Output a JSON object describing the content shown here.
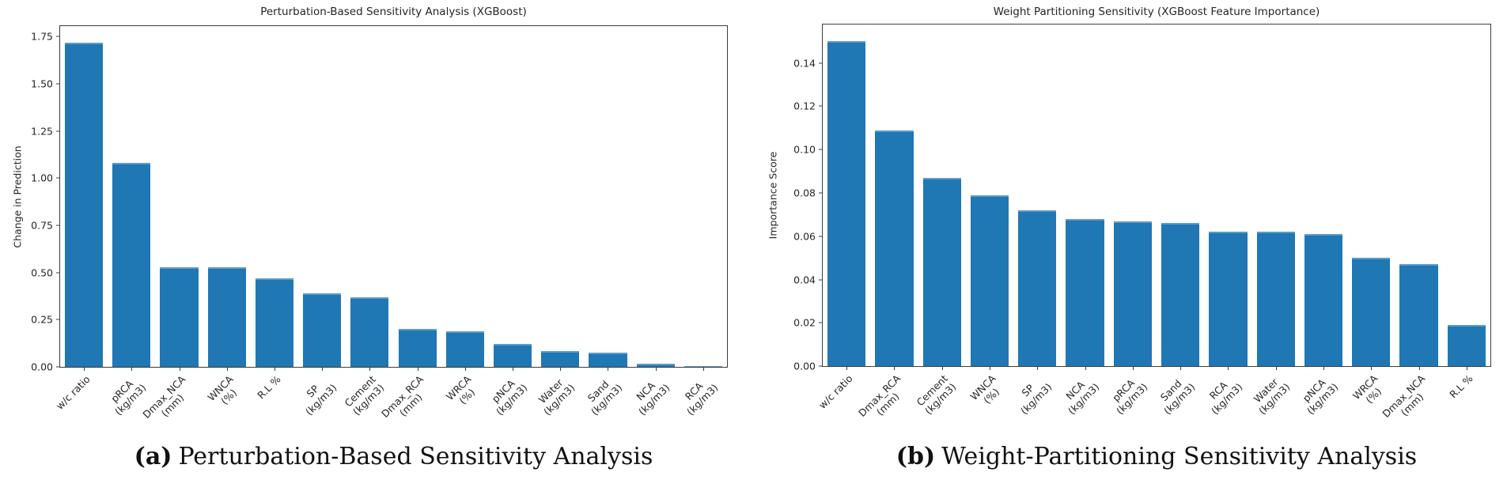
{
  "figure": {
    "background": "#ffffff",
    "bar_color": "#1f77b4",
    "axis_color": "#3c3c3c",
    "text_color": "#262626"
  },
  "chart_data": [
    {
      "type": "bar",
      "title": "Perturbation-Based Sensitivity Analysis (XGBoost)",
      "ylabel": "Change in Prediction",
      "xlabel": "",
      "ylim": [
        0,
        1.806
      ],
      "grid": false,
      "legend": null,
      "yticks": [
        0.0,
        0.25,
        0.5,
        0.75,
        1.0,
        1.25,
        1.5,
        1.75
      ],
      "ytick_labels": [
        "0.00",
        "0.25",
        "0.50",
        "0.75",
        "1.00",
        "1.25",
        "1.50",
        "1.75"
      ],
      "categories": [
        "w/c ratio",
        "pRCA\n(kg/m3)",
        "Dmax_NCA\n(mm)",
        "WNCA\n(%)",
        "R.L %",
        "SP\n(kg/m3)",
        "Cement\n(kg/m3)",
        "Dmax_RCA\n(mm)",
        "WRCA\n(%)",
        "pNCA\n(kg/m3)",
        "Water\n(kg/m3)",
        "Sand\n(kg/m3)",
        "NCA\n(kg/m3)",
        "RCA\n(kg/m3)"
      ],
      "values": [
        1.72,
        1.08,
        0.53,
        0.53,
        0.47,
        0.39,
        0.37,
        0.2,
        0.19,
        0.12,
        0.085,
        0.075,
        0.015,
        0.003
      ],
      "caption_tag": "(a)",
      "caption_text": "Perturbation-Based Sensitivity Analysis"
    },
    {
      "type": "bar",
      "title": "Weight Partitioning Sensitivity (XGBoost Feature Importance)",
      "ylabel": "Importance Score",
      "xlabel": "",
      "ylim": [
        0,
        0.1578
      ],
      "grid": false,
      "legend": null,
      "yticks": [
        0.0,
        0.02,
        0.04,
        0.06,
        0.08,
        0.1,
        0.12,
        0.14
      ],
      "ytick_labels": [
        "0.00",
        "0.02",
        "0.04",
        "0.06",
        "0.08",
        "0.10",
        "0.12",
        "0.14"
      ],
      "categories": [
        "w/c ratio",
        "Dmax_RCA\n(mm)",
        "Cement\n(kg/m3)",
        "WNCA\n(%)",
        "SP\n(kg/m3)",
        "NCA\n(kg/m3)",
        "pRCA\n(kg/m3)",
        "Sand\n(kg/m3)",
        "RCA\n(kg/m3)",
        "Water\n(kg/m3)",
        "pNCA\n(kg/m3)",
        "WRCA\n(%)",
        "Dmax_NCA\n(mm)",
        "R.L %"
      ],
      "values": [
        0.15,
        0.109,
        0.087,
        0.079,
        0.072,
        0.068,
        0.067,
        0.066,
        0.062,
        0.062,
        0.061,
        0.05,
        0.047,
        0.019
      ],
      "caption_tag": "(b)",
      "caption_text": "Weight-Partitioning Sensitivity Analysis"
    }
  ]
}
